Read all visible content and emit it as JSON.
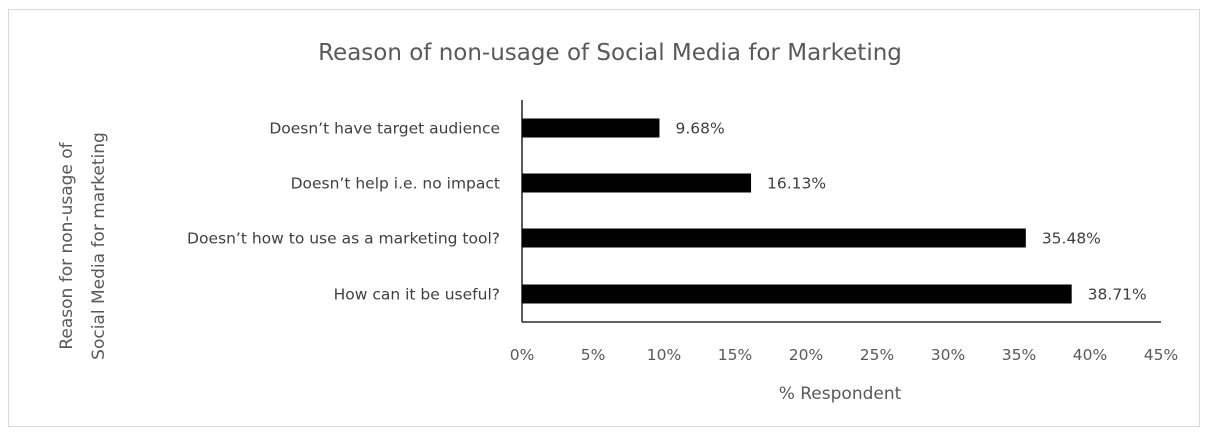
{
  "chart_data": {
    "type": "bar",
    "orientation": "horizontal",
    "title": "Reason of non-usage of Social Media for Marketing",
    "xlabel": "% Respondent",
    "ylabel": "Reason for non-usage of Social Media for marketing",
    "ylabel_lines": [
      "Reason for non-usage of",
      "Social Media for marketing"
    ],
    "categories": [
      "Doesn’t have target audience",
      "Doesn’t help i.e. no impact",
      "Doesn’t how to use as a marketing tool?",
      "How can it be useful?"
    ],
    "values": [
      9.68,
      16.13,
      35.48,
      38.71
    ],
    "data_labels": [
      "9.68%",
      "16.13%",
      "35.48%",
      "38.71%"
    ],
    "xlim": [
      0,
      45
    ],
    "xticks": [
      0,
      5,
      10,
      15,
      20,
      25,
      30,
      35,
      40,
      45
    ],
    "xtick_labels": [
      "0%",
      "5%",
      "10%",
      "15%",
      "20%",
      "25%",
      "30%",
      "35%",
      "40%",
      "45%"
    ],
    "grid": false,
    "legend": "none",
    "bar_color": "#000000",
    "axis_color": "#000000"
  }
}
